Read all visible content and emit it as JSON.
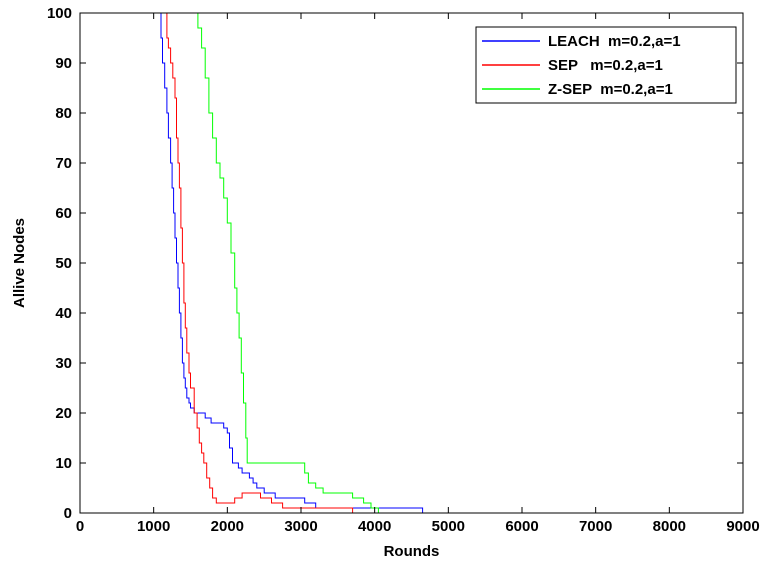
{
  "chart_data": {
    "type": "line",
    "xlabel": "Rounds",
    "ylabel": "Allive Nodes",
    "xlim": [
      0,
      9000
    ],
    "ylim": [
      0,
      100
    ],
    "xticks": [
      0,
      1000,
      2000,
      3000,
      4000,
      5000,
      6000,
      7000,
      8000,
      9000
    ],
    "yticks": [
      0,
      10,
      20,
      30,
      40,
      50,
      60,
      70,
      80,
      90,
      100
    ],
    "grid": false,
    "legend_position": "top-right",
    "series": [
      {
        "name": "LEACH  m=0.2,a=1",
        "color": "#0000ff",
        "points": [
          [
            0,
            100
          ],
          [
            1050,
            100
          ],
          [
            1100,
            95
          ],
          [
            1120,
            90
          ],
          [
            1150,
            85
          ],
          [
            1180,
            80
          ],
          [
            1200,
            75
          ],
          [
            1230,
            70
          ],
          [
            1250,
            65
          ],
          [
            1270,
            60
          ],
          [
            1290,
            55
          ],
          [
            1310,
            50
          ],
          [
            1330,
            45
          ],
          [
            1350,
            40
          ],
          [
            1370,
            35
          ],
          [
            1390,
            30
          ],
          [
            1410,
            27
          ],
          [
            1430,
            25
          ],
          [
            1450,
            23
          ],
          [
            1480,
            22
          ],
          [
            1500,
            21
          ],
          [
            1550,
            20
          ],
          [
            1700,
            19
          ],
          [
            1780,
            18
          ],
          [
            1950,
            17
          ],
          [
            2000,
            16
          ],
          [
            2030,
            13
          ],
          [
            2070,
            10
          ],
          [
            2150,
            9
          ],
          [
            2200,
            8
          ],
          [
            2300,
            7
          ],
          [
            2350,
            6
          ],
          [
            2400,
            5
          ],
          [
            2500,
            4
          ],
          [
            2650,
            3
          ],
          [
            3050,
            2
          ],
          [
            3200,
            1
          ],
          [
            4650,
            1
          ],
          [
            4650,
            0
          ],
          [
            9000,
            0
          ]
        ]
      },
      {
        "name": "SEP   m=0.2,a=1",
        "color": "#ff0000",
        "points": [
          [
            0,
            100
          ],
          [
            1150,
            100
          ],
          [
            1180,
            95
          ],
          [
            1200,
            93
          ],
          [
            1230,
            90
          ],
          [
            1260,
            87
          ],
          [
            1290,
            83
          ],
          [
            1310,
            75
          ],
          [
            1330,
            70
          ],
          [
            1350,
            65
          ],
          [
            1370,
            57
          ],
          [
            1390,
            50
          ],
          [
            1410,
            42
          ],
          [
            1430,
            37
          ],
          [
            1450,
            32
          ],
          [
            1480,
            28
          ],
          [
            1500,
            25
          ],
          [
            1550,
            20
          ],
          [
            1590,
            17
          ],
          [
            1620,
            14
          ],
          [
            1650,
            12
          ],
          [
            1680,
            10
          ],
          [
            1720,
            7
          ],
          [
            1760,
            5
          ],
          [
            1800,
            3
          ],
          [
            1850,
            2
          ],
          [
            2000,
            2
          ],
          [
            2100,
            3
          ],
          [
            2200,
            4
          ],
          [
            2450,
            3
          ],
          [
            2600,
            2
          ],
          [
            2750,
            1
          ],
          [
            3700,
            1
          ],
          [
            3700,
            0
          ],
          [
            9000,
            0
          ]
        ]
      },
      {
        "name": "Z-SEP  m=0.2,a=1",
        "color": "#00ff00",
        "points": [
          [
            0,
            100
          ],
          [
            1550,
            100
          ],
          [
            1600,
            97
          ],
          [
            1650,
            93
          ],
          [
            1700,
            87
          ],
          [
            1750,
            80
          ],
          [
            1800,
            75
          ],
          [
            1850,
            70
          ],
          [
            1900,
            67
          ],
          [
            1950,
            63
          ],
          [
            2000,
            58
          ],
          [
            2050,
            52
          ],
          [
            2100,
            45
          ],
          [
            2130,
            40
          ],
          [
            2160,
            35
          ],
          [
            2190,
            28
          ],
          [
            2220,
            22
          ],
          [
            2250,
            15
          ],
          [
            2270,
            10
          ],
          [
            3000,
            10
          ],
          [
            3050,
            8
          ],
          [
            3100,
            6
          ],
          [
            3200,
            5
          ],
          [
            3300,
            4
          ],
          [
            3700,
            3
          ],
          [
            3850,
            2
          ],
          [
            3950,
            1
          ],
          [
            4050,
            0
          ],
          [
            9000,
            0
          ]
        ]
      }
    ]
  }
}
